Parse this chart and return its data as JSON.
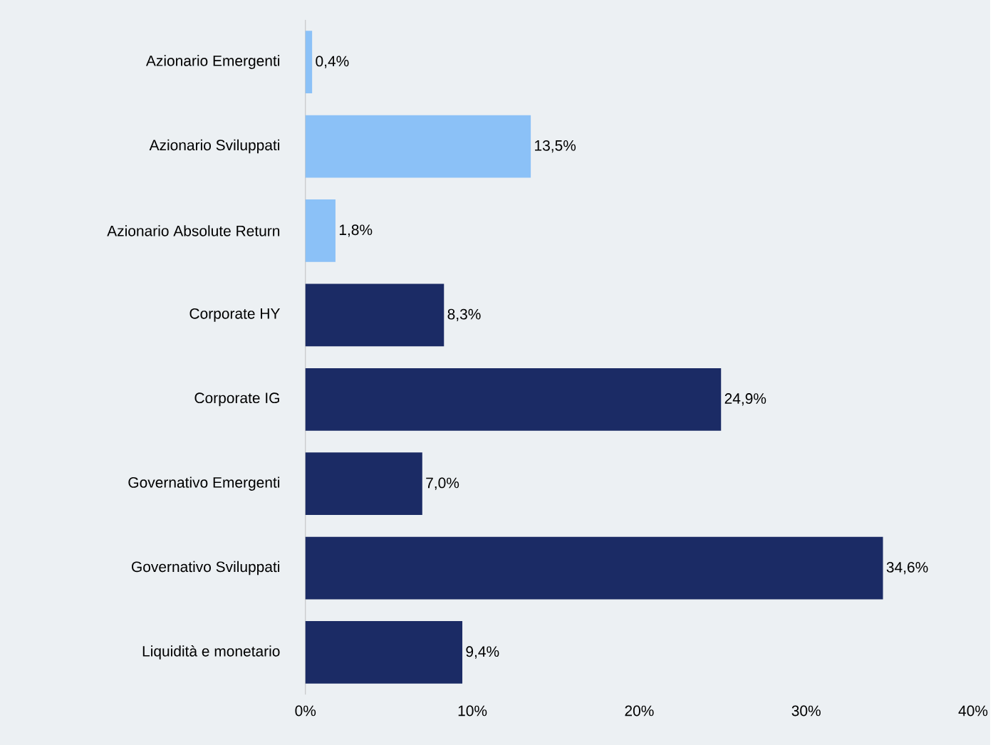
{
  "chart_data": {
    "type": "bar",
    "orientation": "horizontal",
    "categories": [
      "Azionario Emergenti",
      "Azionario Sviluppati",
      "Azionario Absolute Return",
      "Corporate HY",
      "Corporate IG",
      "Governativo Emergenti",
      "Governativo Sviluppati",
      "Liquidità e monetario"
    ],
    "values": [
      0.4,
      13.5,
      1.8,
      8.3,
      24.9,
      7.0,
      34.6,
      9.4
    ],
    "value_labels": [
      "0,4%",
      "13,5%",
      "1,8%",
      "8,3%",
      "24,9%",
      "7,0%",
      "34,6%",
      "9,4%"
    ],
    "colors": [
      "#8bc1f7",
      "#8bc1f7",
      "#8bc1f7",
      "#1b2b65",
      "#1b2b65",
      "#1b2b65",
      "#1b2b65",
      "#1b2b65"
    ],
    "xlim": [
      0,
      40
    ],
    "xticks": [
      {
        "value": 0,
        "label": "0%"
      },
      {
        "value": 10,
        "label": "10%"
      },
      {
        "value": 20,
        "label": "20%"
      },
      {
        "value": 30,
        "label": "30%"
      },
      {
        "value": 40,
        "label": "40%"
      }
    ],
    "grid": false
  }
}
